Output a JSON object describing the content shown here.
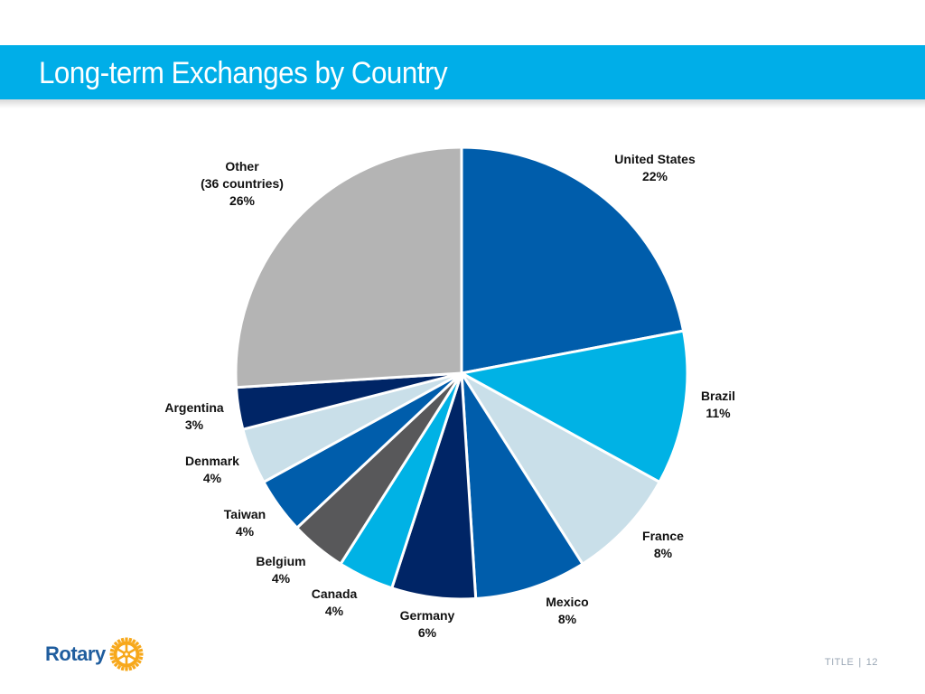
{
  "page": {
    "title": "Long-term Exchanges by Country"
  },
  "footer": {
    "label": "TITLE",
    "separator": "|",
    "page_number": "12"
  },
  "logo": {
    "text": "Rotary",
    "icon": "rotary-wheel-icon",
    "text_color": "#1f5d9e",
    "wheel_color": "#f7a81b"
  },
  "header": {
    "band_color": "#00aee8"
  },
  "chart_data": {
    "type": "pie",
    "title": "Long-term Exchanges by Country",
    "start_angle_deg": 0,
    "direction": "clockwise",
    "slices": [
      {
        "label": "United States",
        "percent_label": "22%",
        "value": 22,
        "color": "#005dab"
      },
      {
        "label": "Brazil",
        "percent_label": "11%",
        "value": 11,
        "color": "#00b2e5"
      },
      {
        "label": "France",
        "percent_label": "8%",
        "value": 8,
        "color": "#c9dfe9"
      },
      {
        "label": "Mexico",
        "percent_label": "8%",
        "value": 8,
        "color": "#005dab"
      },
      {
        "label": "Germany",
        "percent_label": "6%",
        "value": 6,
        "color": "#002566"
      },
      {
        "label": "Canada",
        "percent_label": "4%",
        "value": 4,
        "color": "#00b2e5"
      },
      {
        "label": "Belgium",
        "percent_label": "4%",
        "value": 4,
        "color": "#58585a"
      },
      {
        "label": "Taiwan",
        "percent_label": "4%",
        "value": 4,
        "color": "#005dab"
      },
      {
        "label": "Denmark",
        "percent_label": "4%",
        "value": 4,
        "color": "#c9dfe9"
      },
      {
        "label": "Argentina",
        "percent_label": "3%",
        "value": 3,
        "color": "#002566"
      },
      {
        "label": "Other",
        "sublabel": "(36 countries)",
        "percent_label": "26%",
        "value": 26,
        "color": "#b4b4b4"
      }
    ]
  }
}
